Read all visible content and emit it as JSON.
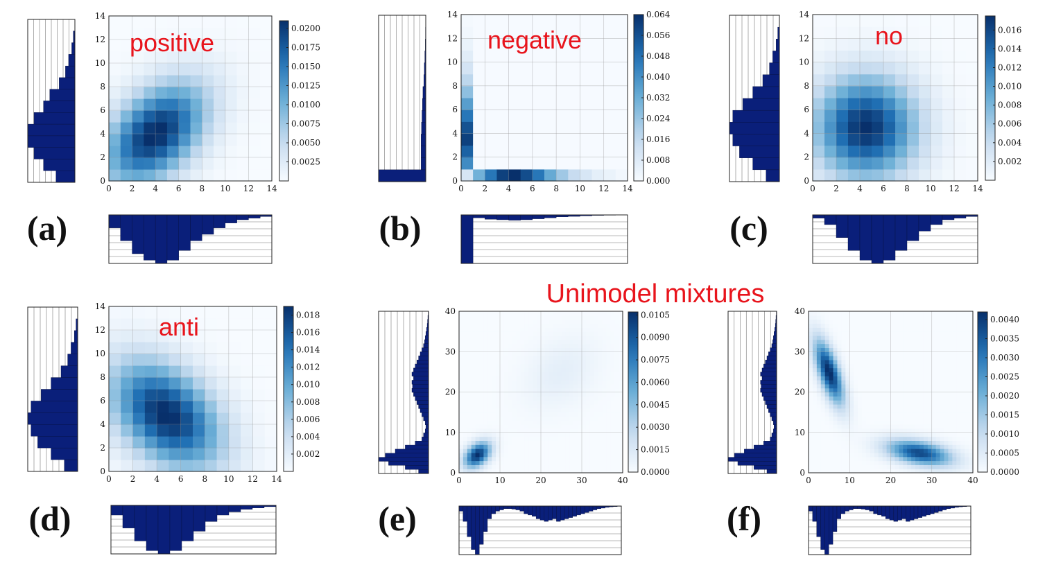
{
  "figure_title": "Unimodel mixtures",
  "colors": {
    "cmap_light": "#f7fbff",
    "cmap_dark": "#08306b",
    "hist": "#0a1f7a",
    "annotation": "#e8141c"
  },
  "chart_data": [
    {
      "panel_label": "(a)",
      "annotation": "positive",
      "type": "heatmap",
      "xlim": [
        0,
        14
      ],
      "ylim": [
        0,
        14
      ],
      "ticks": [
        0,
        2,
        4,
        6,
        8,
        10,
        12,
        14
      ],
      "model": {
        "kind": "gaussian",
        "mean": [
          4,
          4
        ],
        "cov": [
          [
            9,
            4
          ],
          [
            4,
            9
          ]
        ],
        "grid_n": 14
      },
      "colorbar": {
        "ticks": [
          "0.0025",
          "0.0050",
          "0.0075",
          "0.0100",
          "0.0125",
          "0.0150",
          "0.0175",
          "0.0200"
        ],
        "max": 0.021
      },
      "marginal_x": [
        0.04,
        0.08,
        0.12,
        0.14,
        0.15,
        0.14,
        0.11,
        0.08,
        0.06,
        0.04,
        0.025,
        0.015,
        0.01,
        0.005
      ],
      "marginal_y": [
        0.06,
        0.1,
        0.13,
        0.15,
        0.15,
        0.13,
        0.1,
        0.08,
        0.05,
        0.03,
        0.02,
        0.01,
        0.005,
        0.0
      ]
    },
    {
      "panel_label": "(b)",
      "annotation": "negative",
      "type": "heatmap",
      "xlim": [
        0,
        14
      ],
      "ylim": [
        0,
        14
      ],
      "ticks": [
        0,
        2,
        4,
        6,
        8,
        10,
        12,
        14
      ],
      "model": {
        "kind": "L",
        "grid_n": 14,
        "row0": [
          0.01,
          0.03,
          0.045,
          0.058,
          0.062,
          0.055,
          0.045,
          0.032,
          0.022,
          0.015,
          0.01,
          0.006,
          0.004,
          0.002
        ],
        "col0": [
          0.01,
          0.04,
          0.05,
          0.058,
          0.054,
          0.045,
          0.035,
          0.025,
          0.017,
          0.011,
          0.007,
          0.004,
          0.002,
          0.001
        ]
      },
      "colorbar": {
        "ticks": [
          "0.000",
          "0.008",
          "0.016",
          "0.024",
          "0.032",
          "0.040",
          "0.048",
          "0.056",
          "0.064"
        ],
        "max": 0.064
      },
      "marginal_x": [
        0.5,
        0.03,
        0.045,
        0.05,
        0.055,
        0.05,
        0.04,
        0.03,
        0.02,
        0.015,
        0.01,
        0.005,
        0.003,
        0.002
      ],
      "marginal_y": [
        0.5,
        0.05,
        0.05,
        0.05,
        0.045,
        0.04,
        0.035,
        0.03,
        0.02,
        0.015,
        0.01,
        0.005,
        0.003,
        0.001
      ]
    },
    {
      "panel_label": "(c)",
      "annotation": "no",
      "type": "heatmap",
      "xlim": [
        0,
        14
      ],
      "ylim": [
        0,
        14
      ],
      "ticks": [
        0,
        2,
        4,
        6,
        8,
        10,
        12,
        14
      ],
      "model": {
        "kind": "gaussian",
        "mean": [
          4.5,
          4.5
        ],
        "cov": [
          [
            9,
            0
          ],
          [
            0,
            9
          ]
        ],
        "grid_n": 14
      },
      "colorbar": {
        "ticks": [
          "0.002",
          "0.004",
          "0.006",
          "0.008",
          "0.010",
          "0.012",
          "0.014",
          "0.016"
        ],
        "max": 0.0175
      },
      "marginal_x": [
        0.01,
        0.03,
        0.07,
        0.11,
        0.14,
        0.15,
        0.14,
        0.11,
        0.08,
        0.05,
        0.03,
        0.015,
        0.01,
        0.005
      ],
      "marginal_y": [
        0.04,
        0.08,
        0.12,
        0.14,
        0.15,
        0.14,
        0.11,
        0.08,
        0.05,
        0.03,
        0.02,
        0.01,
        0.005,
        0.0
      ]
    },
    {
      "panel_label": "(d)",
      "annotation": "anti",
      "type": "heatmap",
      "xlim": [
        0,
        14
      ],
      "ylim": [
        0,
        14
      ],
      "ticks": [
        0,
        2,
        4,
        6,
        8,
        10,
        12,
        14
      ],
      "model": {
        "kind": "gaussian",
        "mean": [
          4.8,
          4.8
        ],
        "cov": [
          [
            10,
            -4
          ],
          [
            -4,
            10
          ]
        ],
        "grid_n": 14
      },
      "colorbar": {
        "ticks": [
          "0.002",
          "0.004",
          "0.006",
          "0.008",
          "0.010",
          "0.012",
          "0.014",
          "0.016",
          "0.018"
        ],
        "max": 0.019
      },
      "marginal_x": [
        0.03,
        0.07,
        0.11,
        0.14,
        0.15,
        0.14,
        0.11,
        0.08,
        0.05,
        0.03,
        0.02,
        0.012,
        0.008,
        0.004
      ],
      "marginal_y": [
        0.04,
        0.08,
        0.12,
        0.14,
        0.15,
        0.14,
        0.11,
        0.08,
        0.05,
        0.03,
        0.02,
        0.01,
        0.005,
        0.0
      ]
    },
    {
      "panel_label": "(e)",
      "annotation": "",
      "type": "heatmap",
      "xlim": [
        0,
        40
      ],
      "ylim": [
        0,
        40
      ],
      "ticks": [
        0,
        10,
        20,
        30,
        40
      ],
      "model": {
        "kind": "mixture",
        "grid_n": 40,
        "components": [
          {
            "w": 0.55,
            "mean": [
              4.5,
              4.5
            ],
            "cov": [
              [
                5,
                2
              ],
              [
                2,
                5
              ]
            ]
          },
          {
            "w": 0.45,
            "mean": [
              25,
              25
            ],
            "cov": [
              [
                40,
                12
              ],
              [
                12,
                40
              ]
            ]
          }
        ]
      },
      "colorbar": {
        "ticks": [
          "0.0000",
          "0.0015",
          "0.0030",
          "0.0045",
          "0.0060",
          "0.0075",
          "0.0090",
          "0.0105"
        ],
        "max": 0.0107
      },
      "marginal_x": [
        0.02,
        0.06,
        0.12,
        0.17,
        0.19,
        0.15,
        0.1,
        0.05,
        0.03,
        0.02,
        0.015,
        0.01,
        0.01,
        0.012,
        0.015,
        0.02,
        0.03,
        0.035,
        0.04,
        0.05,
        0.055,
        0.06,
        0.055,
        0.05,
        0.06,
        0.055,
        0.05,
        0.045,
        0.04,
        0.035,
        0.03,
        0.025,
        0.02,
        0.015,
        0.01,
        0.008,
        0.005,
        0.003,
        0.002,
        0.001
      ],
      "marginal_y": [
        0.03,
        0.07,
        0.12,
        0.15,
        0.13,
        0.1,
        0.07,
        0.04,
        0.02,
        0.015,
        0.01,
        0.008,
        0.01,
        0.015,
        0.02,
        0.025,
        0.03,
        0.035,
        0.04,
        0.045,
        0.05,
        0.048,
        0.05,
        0.045,
        0.05,
        0.045,
        0.04,
        0.035,
        0.03,
        0.025,
        0.02,
        0.015,
        0.012,
        0.01,
        0.008,
        0.006,
        0.004,
        0.003,
        0.002,
        0.001
      ]
    },
    {
      "panel_label": "(f)",
      "annotation": "",
      "type": "heatmap",
      "xlim": [
        0,
        40
      ],
      "ylim": [
        0,
        40
      ],
      "ticks": [
        0,
        10,
        20,
        30,
        40
      ],
      "model": {
        "kind": "mixture",
        "grid_n": 40,
        "components": [
          {
            "w": 0.5,
            "mean": [
              5,
              25
            ],
            "cov": [
              [
                6,
                -9
              ],
              [
                -9,
                30
              ]
            ]
          },
          {
            "w": 0.5,
            "mean": [
              27,
              5
            ],
            "cov": [
              [
                30,
                -5
              ],
              [
                -5,
                5
              ]
            ]
          }
        ]
      },
      "colorbar": {
        "ticks": [
          "0.0000",
          "0.0005",
          "0.0010",
          "0.0015",
          "0.0020",
          "0.0025",
          "0.0030",
          "0.0035",
          "0.0040"
        ],
        "max": 0.0042
      },
      "marginal_x": [
        0.02,
        0.06,
        0.12,
        0.17,
        0.19,
        0.15,
        0.1,
        0.05,
        0.03,
        0.02,
        0.015,
        0.01,
        0.01,
        0.012,
        0.015,
        0.02,
        0.03,
        0.035,
        0.04,
        0.05,
        0.055,
        0.06,
        0.055,
        0.05,
        0.06,
        0.055,
        0.05,
        0.045,
        0.04,
        0.035,
        0.03,
        0.025,
        0.02,
        0.015,
        0.01,
        0.008,
        0.005,
        0.003,
        0.002,
        0.001
      ],
      "marginal_y": [
        0.03,
        0.07,
        0.12,
        0.15,
        0.13,
        0.1,
        0.07,
        0.04,
        0.02,
        0.015,
        0.01,
        0.008,
        0.01,
        0.015,
        0.02,
        0.025,
        0.03,
        0.035,
        0.04,
        0.045,
        0.05,
        0.048,
        0.05,
        0.045,
        0.05,
        0.045,
        0.04,
        0.035,
        0.03,
        0.025,
        0.02,
        0.015,
        0.012,
        0.01,
        0.008,
        0.006,
        0.004,
        0.003,
        0.002,
        0.001
      ]
    }
  ]
}
